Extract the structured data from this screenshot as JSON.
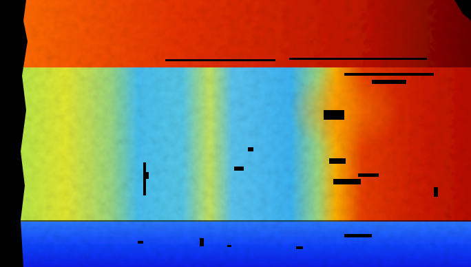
{
  "image": {
    "kind": "depth-map",
    "colormap": "jet",
    "regions": [
      {
        "name": "top-wall-band",
        "dominant_color": "#c81e08"
      },
      {
        "name": "left-yellow-column",
        "dominant_color": "#d8e83a"
      },
      {
        "name": "center-cyan-panel",
        "dominant_color": "#3fb8f0"
      },
      {
        "name": "center-yellow-stripe",
        "dominant_color": "#b8e070"
      },
      {
        "name": "right-red-region",
        "dominant_color": "#d02808"
      },
      {
        "name": "bottom-blue-floor",
        "dominant_color": "#0a3cf0"
      },
      {
        "name": "left-black-border",
        "dominant_color": "#000000"
      }
    ],
    "colors": {
      "dark_red": "#7a0000",
      "red": "#e02000",
      "orange": "#ff8a00",
      "yellow": "#f4f020",
      "cyan": "#40c8f0",
      "blue": "#1040ff",
      "black": "#000000"
    }
  }
}
